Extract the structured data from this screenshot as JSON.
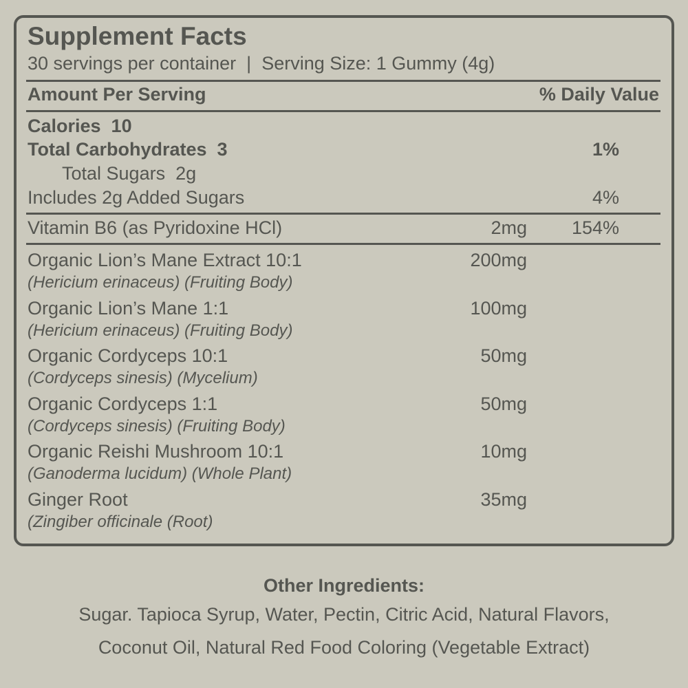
{
  "title": "Supplement Facts",
  "serving_info": "30 servings per container  |  Serving Size: 1 Gummy (4g)",
  "header": {
    "amount": "Amount Per Serving",
    "dv": "% Daily Value"
  },
  "calories": "Calories  10",
  "total_carbs": {
    "label": "Total Carbohydrates  3",
    "dv": "1%"
  },
  "total_sugars": "Total Sugars  2g",
  "added_sugars": {
    "label": "Includes 2g Added Sugars",
    "dv": "4%"
  },
  "vitamin": {
    "label": "Vitamin B6 (as Pyridoxine HCl)",
    "amount": "2mg",
    "dv": "154%"
  },
  "ingredients": [
    {
      "name": "Organic Lion’s Mane Extract 10:1",
      "latin": "(Hericium erinaceus) (Fruiting Body)",
      "amount": "200mg"
    },
    {
      "name": "Organic Lion’s Mane 1:1",
      "latin": "(Hericium erinaceus) (Fruiting Body)",
      "amount": "100mg"
    },
    {
      "name": "Organic Cordyceps 10:1",
      "latin": "(Cordyceps sinesis) (Mycelium)",
      "amount": "50mg"
    },
    {
      "name": "Organic Cordyceps 1:1",
      "latin": "(Cordyceps sinesis) (Fruiting Body)",
      "amount": "50mg"
    },
    {
      "name": "Organic Reishi Mushroom 10:1",
      "latin": "(Ganoderma lucidum) (Whole Plant)",
      "amount": "10mg"
    },
    {
      "name": "Ginger Root",
      "latin": "(Zingiber officinale (Root)",
      "amount": "35mg"
    }
  ],
  "other": {
    "heading": "Other Ingredients:",
    "line1": "Sugar. Tapioca Syrup, Water, Pectin, Citric Acid, Natural Flavors,",
    "line2": "Coconut Oil, Natural Red Food Coloring (Vegetable Extract)"
  },
  "colors": {
    "background": "#cbc9bd",
    "text": "#555651"
  }
}
